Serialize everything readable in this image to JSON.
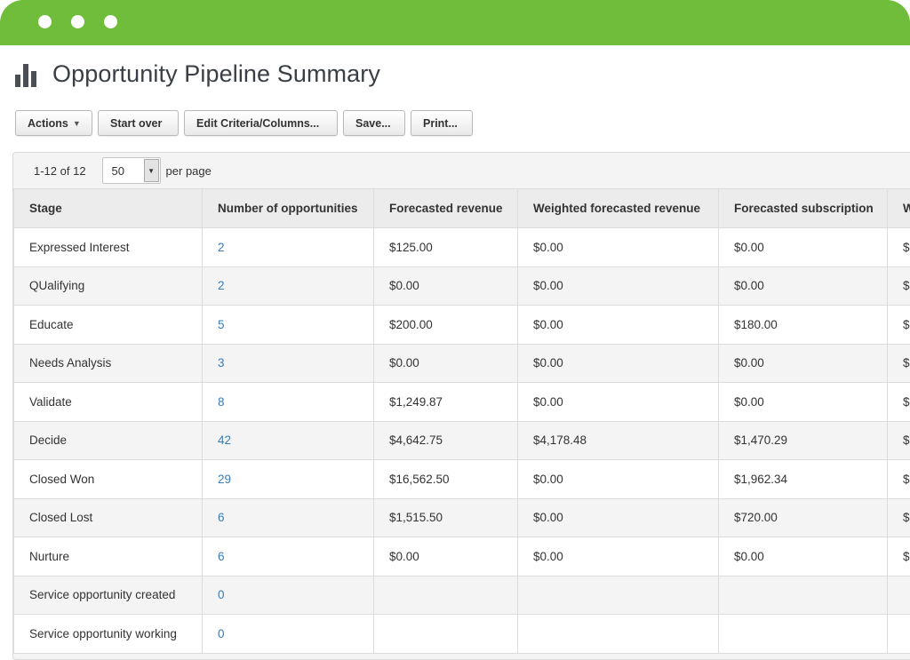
{
  "window": {
    "controls": [
      "close",
      "minimize",
      "maximize"
    ]
  },
  "header": {
    "title": "Opportunity Pipeline Summary",
    "icon": "bar-chart-icon"
  },
  "toolbar": {
    "actions_label": "Actions",
    "start_over_label": "Start over",
    "edit_label": "Edit Criteria/Columns...",
    "save_label": "Save...",
    "print_label": "Print..."
  },
  "pager": {
    "range": "1-12 of 12",
    "page_size": "50",
    "per_page_label": "per page"
  },
  "table": {
    "columns": [
      "Stage",
      "Number of opportunities",
      "Forecasted revenue",
      "Weighted forecasted revenue",
      "Forecasted subscription",
      "W"
    ],
    "rows": [
      {
        "stage": "Expressed Interest",
        "count": "2",
        "forecasted_revenue": "$125.00",
        "weighted_revenue": "$0.00",
        "subscription": "$0.00",
        "partial": "$"
      },
      {
        "stage": "QUalifying",
        "count": "2",
        "forecasted_revenue": "$0.00",
        "weighted_revenue": "$0.00",
        "subscription": "$0.00",
        "partial": "$"
      },
      {
        "stage": "Educate",
        "count": "5",
        "forecasted_revenue": "$200.00",
        "weighted_revenue": "$0.00",
        "subscription": "$180.00",
        "partial": "$"
      },
      {
        "stage": "Needs Analysis",
        "count": "3",
        "forecasted_revenue": "$0.00",
        "weighted_revenue": "$0.00",
        "subscription": "$0.00",
        "partial": "$"
      },
      {
        "stage": "Validate",
        "count": "8",
        "forecasted_revenue": "$1,249.87",
        "weighted_revenue": "$0.00",
        "subscription": "$0.00",
        "partial": "$"
      },
      {
        "stage": "Decide",
        "count": "42",
        "forecasted_revenue": "$4,642.75",
        "weighted_revenue": "$4,178.48",
        "subscription": "$1,470.29",
        "partial": "$"
      },
      {
        "stage": "Closed Won",
        "count": "29",
        "forecasted_revenue": "$16,562.50",
        "weighted_revenue": "$0.00",
        "subscription": "$1,962.34",
        "partial": "$"
      },
      {
        "stage": "Closed Lost",
        "count": "6",
        "forecasted_revenue": "$1,515.50",
        "weighted_revenue": "$0.00",
        "subscription": "$720.00",
        "partial": "$"
      },
      {
        "stage": "Nurture",
        "count": "6",
        "forecasted_revenue": "$0.00",
        "weighted_revenue": "$0.00",
        "subscription": "$0.00",
        "partial": "$"
      },
      {
        "stage": "Service opportunity created",
        "count": "0",
        "forecasted_revenue": "",
        "weighted_revenue": "",
        "subscription": "",
        "partial": ""
      },
      {
        "stage": "Service opportunity working",
        "count": "0",
        "forecasted_revenue": "",
        "weighted_revenue": "",
        "subscription": "",
        "partial": ""
      }
    ]
  },
  "colors": {
    "topbar": "#6fbd3a",
    "link": "#3b7bb6"
  }
}
